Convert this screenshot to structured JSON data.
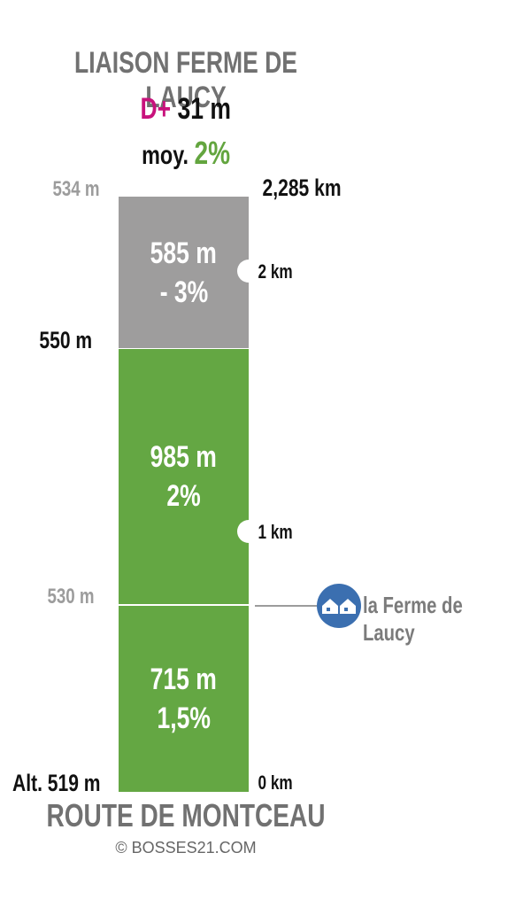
{
  "title": "LIAISON FERME DE LAUCY",
  "elevation_gain": {
    "label": "D+",
    "value": "31 m"
  },
  "average_grade": {
    "label": "moy.",
    "value": "2%"
  },
  "segments": [
    {
      "length": "585 m",
      "grade": "- 3%",
      "color": "#9e9d9d"
    },
    {
      "length": "985 m",
      "grade": "2%",
      "color": "#64a743"
    },
    {
      "length": "715 m",
      "grade": "1,5%",
      "color": "#64a743"
    }
  ],
  "altitudes": {
    "top": "534 m",
    "peak": "550 m",
    "mid": "530 m",
    "start": "Alt. 519 m"
  },
  "distances": {
    "total": "2,285 km",
    "km2": "2 km",
    "km1": "1 km",
    "km0": "0 km"
  },
  "poi": {
    "label": "la Ferme de Laucy",
    "icon": "houses-icon"
  },
  "start_name": "ROUTE DE MONTCEAU",
  "credit": "© BOSSES21.COM",
  "colors": {
    "accent_pink": "#c8127c",
    "green": "#64a743",
    "grey": "#9e9d9d",
    "poi_blue": "#3b6fb0"
  }
}
